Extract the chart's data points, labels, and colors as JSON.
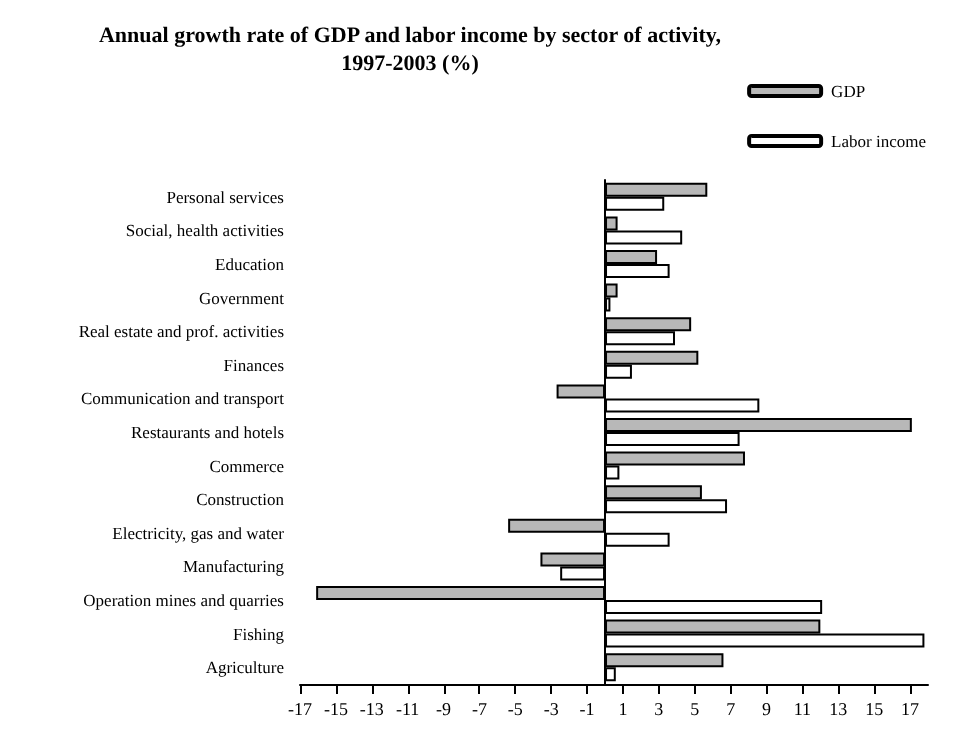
{
  "chart_data": {
    "type": "bar",
    "orientation": "horizontal",
    "title": "Annual growth rate of GDP and labor income by sector of activity,\n1997-2003 (%)",
    "categories": [
      "Personal services",
      "Social, health activities",
      "Education",
      "Government",
      "Real estate and prof. activities",
      "Finances",
      "Communication and transport",
      "Restaurants and hotels",
      "Commerce",
      "Construction",
      "Electricity, gas and water",
      "Manufacturing",
      "Operation mines and quarries",
      "Fishing",
      "Agriculture"
    ],
    "series": [
      {
        "name": "GDP",
        "color": "#b8b8b8",
        "values": [
          5.7,
          0.7,
          2.9,
          0.7,
          4.8,
          5.2,
          -2.7,
          17.1,
          7.8,
          5.4,
          -5.4,
          -3.6,
          -16.1,
          12.0,
          6.6
        ]
      },
      {
        "name": "Labor income",
        "color": "#ffffff",
        "values": [
          3.3,
          4.3,
          3.6,
          0.3,
          3.9,
          1.5,
          8.6,
          7.5,
          0.8,
          6.8,
          3.6,
          -2.5,
          12.1,
          17.8,
          0.6
        ]
      }
    ],
    "xlim": [
      -17,
      18
    ],
    "xticks": [
      -17,
      -15,
      -13,
      -11,
      -9,
      -7,
      -5,
      -3,
      -1,
      1,
      3,
      5,
      7,
      9,
      11,
      13,
      15,
      17
    ],
    "grid": false,
    "legend": "top right"
  }
}
